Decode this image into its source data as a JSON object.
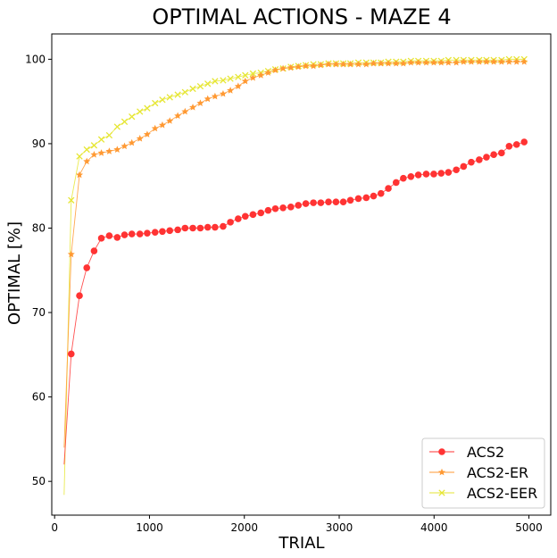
{
  "chart_data": {
    "type": "line",
    "title": "OPTIMAL ACTIONS - MAZE 4",
    "xlabel": "TRIAL",
    "ylabel": "OPTIMAL [%]",
    "xlim": [
      -30,
      5230
    ],
    "ylim": [
      46,
      103
    ],
    "xticks": [
      0,
      1000,
      2000,
      3000,
      4000,
      5000
    ],
    "xtick_labels": [
      "0",
      "1000",
      "2000",
      "3000",
      "4000",
      "5000"
    ],
    "yticks": [
      50,
      60,
      70,
      80,
      90,
      100
    ],
    "ytick_labels": [
      "50",
      "60",
      "70",
      "80",
      "90",
      "100"
    ],
    "grid": false,
    "legend_position": "bottom-right",
    "series": [
      {
        "name": "ACS2",
        "color": "#ff3333",
        "marker": "circle",
        "x": [
          100,
          175,
          262,
          339,
          416,
          493,
          576,
          660,
          737,
          814,
          899,
          976,
          1059,
          1136,
          1214,
          1298,
          1375,
          1457,
          1536,
          1614,
          1691,
          1776,
          1853,
          1935,
          2010,
          2091,
          2174,
          2251,
          2327,
          2408,
          2490,
          2569,
          2648,
          2728,
          2806,
          2887,
          2966,
          3043,
          3118,
          3202,
          3285,
          3362,
          3440,
          3518,
          3600,
          3676,
          3756,
          3834,
          3917,
          3997,
          4075,
          4151,
          4234,
          4311,
          4392,
          4476,
          4552,
          4629,
          4711,
          4791,
          4870,
          4950
        ],
        "values": [
          52.0,
          65.1,
          72.0,
          75.3,
          77.3,
          78.8,
          79.1,
          78.9,
          79.2,
          79.3,
          79.3,
          79.4,
          79.5,
          79.6,
          79.7,
          79.8,
          80.0,
          80.0,
          80.0,
          80.1,
          80.1,
          80.2,
          80.7,
          81.1,
          81.4,
          81.6,
          81.8,
          82.1,
          82.3,
          82.4,
          82.5,
          82.7,
          82.9,
          83.0,
          83.0,
          83.1,
          83.1,
          83.1,
          83.3,
          83.5,
          83.6,
          83.8,
          84.1,
          84.7,
          85.4,
          85.9,
          86.1,
          86.3,
          86.4,
          86.4,
          86.5,
          86.6,
          86.9,
          87.3,
          87.8,
          88.1,
          88.4,
          88.7,
          88.9,
          89.7,
          89.9,
          90.2
        ],
        "marker_from_index": 1
      },
      {
        "name": "ACS2-ER",
        "color": "#ff9933",
        "marker": "star",
        "x": [
          100,
          175,
          262,
          339,
          416,
          493,
          576,
          660,
          737,
          814,
          899,
          976,
          1059,
          1136,
          1214,
          1298,
          1375,
          1457,
          1536,
          1614,
          1691,
          1776,
          1853,
          1935,
          2010,
          2091,
          2174,
          2251,
          2327,
          2408,
          2490,
          2569,
          2648,
          2728,
          2806,
          2887,
          2966,
          3043,
          3118,
          3202,
          3285,
          3362,
          3440,
          3518,
          3600,
          3676,
          3756,
          3834,
          3917,
          3997,
          4075,
          4151,
          4234,
          4311,
          4392,
          4476,
          4552,
          4629,
          4711,
          4791,
          4870,
          4950
        ],
        "values": [
          54.0,
          76.9,
          86.3,
          87.9,
          88.7,
          88.9,
          89.1,
          89.3,
          89.7,
          90.1,
          90.6,
          91.1,
          91.8,
          92.2,
          92.7,
          93.3,
          93.8,
          94.3,
          94.8,
          95.3,
          95.6,
          95.9,
          96.3,
          96.8,
          97.4,
          97.8,
          98.1,
          98.4,
          98.7,
          98.9,
          99.0,
          99.1,
          99.2,
          99.2,
          99.3,
          99.4,
          99.4,
          99.4,
          99.4,
          99.4,
          99.4,
          99.5,
          99.5,
          99.5,
          99.5,
          99.5,
          99.6,
          99.6,
          99.6,
          99.6,
          99.6,
          99.6,
          99.6,
          99.7,
          99.7,
          99.7,
          99.7,
          99.7,
          99.7,
          99.7,
          99.7,
          99.7
        ],
        "marker_from_index": 1
      },
      {
        "name": "ACS2-EER",
        "color": "#e6e633",
        "marker": "x",
        "x": [
          100,
          175,
          262,
          339,
          416,
          493,
          576,
          660,
          737,
          814,
          899,
          976,
          1059,
          1136,
          1214,
          1298,
          1375,
          1457,
          1536,
          1614,
          1691,
          1776,
          1853,
          1935,
          2010,
          2091,
          2174,
          2251,
          2327,
          2408,
          2490,
          2569,
          2648,
          2728,
          2806,
          2887,
          2966,
          3043,
          3118,
          3202,
          3285,
          3362,
          3440,
          3518,
          3600,
          3676,
          3756,
          3834,
          3917,
          3997,
          4075,
          4151,
          4234,
          4311,
          4392,
          4476,
          4552,
          4629,
          4711,
          4791,
          4870,
          4950
        ],
        "values": [
          48.4,
          83.3,
          88.5,
          89.3,
          89.8,
          90.5,
          91.0,
          92.0,
          92.6,
          93.2,
          93.8,
          94.2,
          94.8,
          95.2,
          95.5,
          95.8,
          96.1,
          96.5,
          96.8,
          97.1,
          97.4,
          97.5,
          97.7,
          97.9,
          98.1,
          98.3,
          98.4,
          98.6,
          98.8,
          98.9,
          99.1,
          99.2,
          99.3,
          99.4,
          99.4,
          99.5,
          99.5,
          99.5,
          99.5,
          99.6,
          99.6,
          99.6,
          99.6,
          99.7,
          99.7,
          99.7,
          99.8,
          99.8,
          99.8,
          99.8,
          99.8,
          99.9,
          99.9,
          99.9,
          99.9,
          99.9,
          99.9,
          99.9,
          99.9,
          100.0,
          100.0,
          100.0
        ],
        "marker_from_index": 1
      }
    ]
  }
}
